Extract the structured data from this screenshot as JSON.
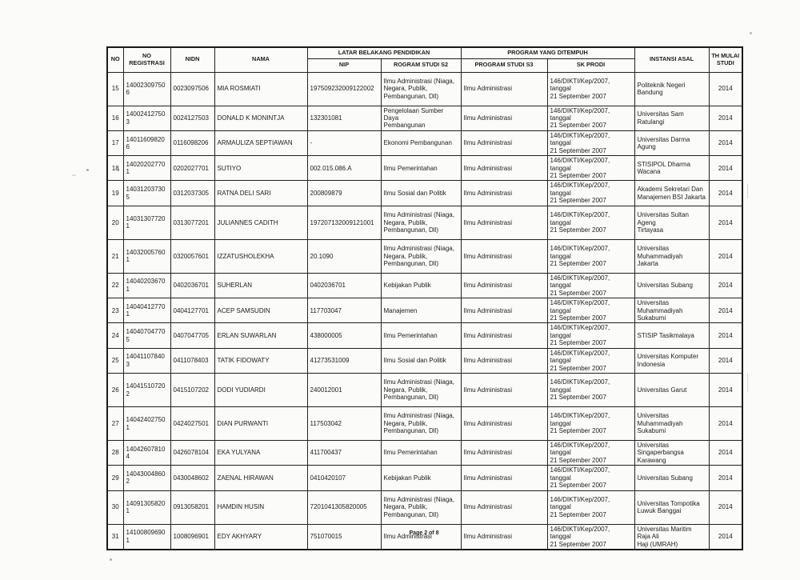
{
  "document": {
    "page_footer": "Page 2 of 8"
  },
  "table": {
    "header": {
      "no": "NO",
      "no_registrasi": "NO REGISTRASI",
      "nidn": "NIDN",
      "nama": "NAMA",
      "latar_belakang": "LATAR BELAKANG PENDIDIKAN",
      "nip": "NIP",
      "program_studi_s2": "ROGRAM STUDI S2",
      "program_ditempuh": "PROGRAM YANG DITEMPUH",
      "program_studi_s3": "PROGRAM STUDI S3",
      "sk_prodi": "SK PRODI",
      "instansi_asal": "INSTANSI ASAL",
      "th_mulai": "TH MULAI\nSTUDI"
    },
    "rows": [
      {
        "no": "15",
        "no_registrasi": "140023097506",
        "nidn": "0023097506",
        "nama": "MIA ROSMIATI",
        "nip": "197509232009122002",
        "s2": "Ilmu Administrasi (Niaga,\nNegara, Publik,\nPembangunan, Dll)",
        "s3": "Ilmu Administrasi",
        "sk": "146/DIKTI/Kep/2007, tanggal\n21 September 2007",
        "instansi": "Politeknik Negeri Bandung",
        "th": "2014",
        "tall": true
      },
      {
        "no": "16",
        "no_registrasi": "140024127503",
        "nidn": "0024127503",
        "nama": "DONALD K MONINTJA",
        "nip": "132301081",
        "s2": "Pengelolaan Sumber Daya\nPembangunan",
        "s3": "Ilmu Administrasi",
        "sk": "146/DIKTI/Kep/2007, tanggal\n21 September 2007",
        "instansi": "Universitas Sam Ratulangi",
        "th": "2014",
        "tall": false
      },
      {
        "no": "17",
        "no_registrasi": "140116098206",
        "nidn": "0116098206",
        "nama": "ARMAULIZA SEPTIAWAN",
        "nip": "-",
        "s2": "Ekonomi Pembangunan",
        "s3": "Ilmu Administrasi",
        "sk": "146/DIKTI/Kep/2007, tanggal\n21 September 2007",
        "instansi": "Universitas Darma Agung",
        "th": "2014",
        "tall": false
      },
      {
        "no": "18",
        "no_registrasi": "140202027701",
        "nidn": "0202027701",
        "nama": "SUTIYO",
        "nip": "002.015.086.A",
        "s2": "Ilmu Pemerintahan",
        "s3": "Ilmu Administrasi",
        "sk": "146/DIKTI/Kep/2007, tanggal\n21 September 2007",
        "instansi": "STISIPOL Dharma Wacana",
        "th": "2014",
        "tall": false
      },
      {
        "no": "19",
        "no_registrasi": "140312037305",
        "nidn": "0312037305",
        "nama": "RATNA DELI SARI",
        "nip": "200809879",
        "s2": "Ilmu Sosial dan Politik",
        "s3": "Ilmu Administrasi",
        "sk": "146/DIKTI/Kep/2007, tanggal\n21 September 2007",
        "instansi": "Akademi Sekretari Dan\nManajemen BSI Jakarta",
        "th": "2014",
        "tall": false
      },
      {
        "no": "20",
        "no_registrasi": "140313077201",
        "nidn": "0313077201",
        "nama": "JULIANNES CADITH",
        "nip": "197207132009121001",
        "s2": "Ilmu Administrasi (Niaga,\nNegara, Publik,\nPembangunan, Dll)",
        "s3": "Ilmu Administrasi",
        "sk": "146/DIKTI/Kep/2007, tanggal\n21 September 2007",
        "instansi": "Universitas Sultan Ageng\nTirtayasa",
        "th": "2014",
        "tall": true
      },
      {
        "no": "21",
        "no_registrasi": "140320057601",
        "nidn": "0320057601",
        "nama": "IZZATUSHOLEKHA",
        "nip": "20.1090",
        "s2": "Ilmu Administrasi (Niaga,\nNegara, Publik,\nPembangunan, Dll)",
        "s3": "Ilmu Administrasi",
        "sk": "146/DIKTI/Kep/2007, tanggal\n21 September 2007",
        "instansi": "Universitas Muhammadiyah\nJakarta",
        "th": "2014",
        "tall": true
      },
      {
        "no": "22",
        "no_registrasi": "140402036701",
        "nidn": "0402036701",
        "nama": "SUHERLAN",
        "nip": "0402036701",
        "s2": "Kebijakan Publik",
        "s3": "Ilmu Administrasi",
        "sk": "146/DIKTI/Kep/2007, tanggal\n21 September 2007",
        "instansi": "Universitas Subang",
        "th": "2014",
        "tall": false
      },
      {
        "no": "23",
        "no_registrasi": "140404127701",
        "nidn": "0404127701",
        "nama": "ACEP SAMSUDIN",
        "nip": "117703047",
        "s2": "Manajemen",
        "s3": "Ilmu Administrasi",
        "sk": "146/DIKTI/Kep/2007, tanggal\n21 September 2007",
        "instansi": "Universitas Muhammadiyah\nSukabumi",
        "th": "2014",
        "tall": false
      },
      {
        "no": "24",
        "no_registrasi": "140407047705",
        "nidn": "0407047705",
        "nama": "ERLAN SUWARLAN",
        "nip": "438000005",
        "s2": "Ilmu Pemerintahan",
        "s3": "Ilmu Administrasi",
        "sk": "146/DIKTI/Kep/2007, tanggal\n21 September 2007",
        "instansi": "STISIP Tasikmalaya",
        "th": "2014",
        "tall": false
      },
      {
        "no": "25",
        "no_registrasi": "140411078403",
        "nidn": "0411078403",
        "nama": "TATIK FIDOWATY",
        "nip": "41273531009",
        "s2": "Ilmu Sosial dan Politik",
        "s3": "Ilmu Administrasi",
        "sk": "146/DIKTI/Kep/2007, tanggal\n21 September 2007",
        "instansi": "Universitas Komputer\nIndonesia",
        "th": "2014",
        "tall": false
      },
      {
        "no": "26",
        "no_registrasi": "140415107202",
        "nidn": "0415107202",
        "nama": "DODI YUDIARDI",
        "nip": "240012001",
        "s2": "Ilmu Administrasi (Niaga,\nNegara, Publik,\nPembangunan, Dll)",
        "s3": "Ilmu Administrasi",
        "sk": "146/DIKTI/Kep/2007, tanggal\n21 September 2007",
        "instansi": "Universitas Garut",
        "th": "2014",
        "tall": true
      },
      {
        "no": "27",
        "no_registrasi": "140424027501",
        "nidn": "0424027501",
        "nama": "DIAN PURWANTI",
        "nip": "117503042",
        "s2": "Ilmu Administrasi (Niaga,\nNegara, Publik,\nPembangunan, Dll)",
        "s3": "Ilmu Administrasi",
        "sk": "146/DIKTI/Kep/2007, tanggal\n21 September 2007",
        "instansi": "Universitas Muhammadiyah\nSukabumi",
        "th": "2014",
        "tall": true
      },
      {
        "no": "28",
        "no_registrasi": "140426078104",
        "nidn": "0426078104",
        "nama": "EKA YULYANA",
        "nip": "411700437",
        "s2": "Ilmu Pemerintahan",
        "s3": "Ilmu Administrasi",
        "sk": "146/DIKTI/Kep/2007, tanggal\n21 September 2007",
        "instansi": "Universitas Singaperbangsa\nKarawang",
        "th": "2014",
        "tall": false
      },
      {
        "no": "29",
        "no_registrasi": "140430048602",
        "nidn": "0430048602",
        "nama": "ZAENAL HIRAWAN",
        "nip": "0410420107",
        "s2": "Kebijakan Publik",
        "s3": "Ilmu Administrasi",
        "sk": "146/DIKTI/Kep/2007, tanggal\n21 September 2007",
        "instansi": "Universitas Subang",
        "th": "2014",
        "tall": false
      },
      {
        "no": "30",
        "no_registrasi": "140913058201",
        "nidn": "0913058201",
        "nama": "HAMDIN HUSIN",
        "nip": "7201041305820005",
        "s2": "Ilmu Administrasi (Niaga,\nNegara, Publik,\nPembangunan, Dll)",
        "s3": "Ilmu Administrasi",
        "sk": "146/DIKTI/Kep/2007, tanggal\n21 September 2007",
        "instansi": "Universitas Tompotika\nLuwuk Banggai",
        "th": "2014",
        "tall": true
      },
      {
        "no": "31",
        "no_registrasi": "141008096901",
        "nidn": "1008096901",
        "nama": "EDY AKHYARY",
        "nip": "751070015",
        "s2": "Ilmu Administrasi",
        "s3": "Ilmu Administrasi",
        "sk": "146/DIKTI/Kep/2007, tanggal\n21 September 2007",
        "instansi": "Universitas Maritim Raja Ali\nHaji (UMRAH)",
        "th": "2014",
        "tall": false
      }
    ]
  }
}
